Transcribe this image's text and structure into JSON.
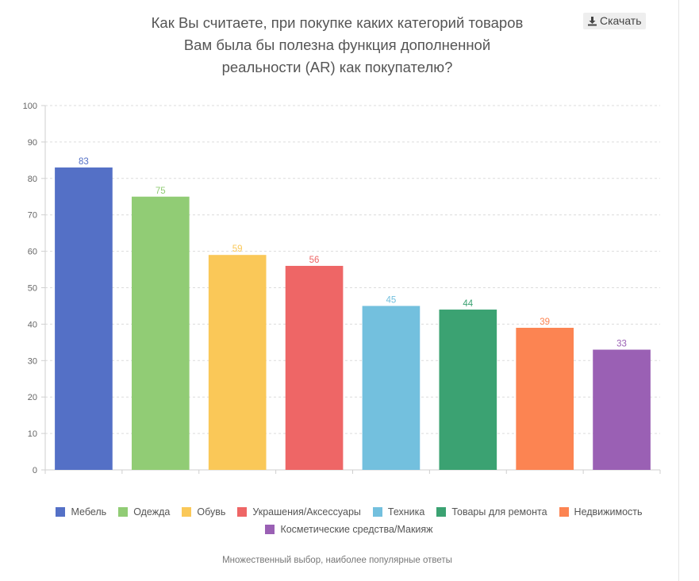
{
  "header": {
    "title_lines": [
      "Как Вы считаете, при покупке каких категорий товаров",
      "Вам была бы полезна функция дополненной",
      "реальности (AR) как покупателю?"
    ],
    "download_label": "Скачать",
    "download_icon": "download-icon"
  },
  "chart_data": {
    "type": "bar",
    "title": "Как Вы считаете, при покупке каких категорий товаров Вам была бы полезна функция дополненной реальности (AR) как покупателю?",
    "categories": [
      "Мебель",
      "Одежда",
      "Обувь",
      "Украшения/Аксессуары",
      "Техника",
      "Товары для ремонта",
      "Недвижимость",
      "Косметические средства/Макияж"
    ],
    "values": [
      83,
      75,
      59,
      56,
      45,
      44,
      39,
      33
    ],
    "colors": [
      "#5470c6",
      "#91cc75",
      "#fac858",
      "#ee6666",
      "#73c0de",
      "#3ba272",
      "#fc8452",
      "#9a60b4"
    ],
    "ylim": [
      0,
      100
    ],
    "yticks": [
      0,
      10,
      20,
      30,
      40,
      50,
      60,
      70,
      80,
      90,
      100
    ],
    "xlabel": "",
    "ylabel": "",
    "grid": true,
    "legend_position": "bottom"
  },
  "footnote": "Множественный выбор, наиболее популярные ответы"
}
